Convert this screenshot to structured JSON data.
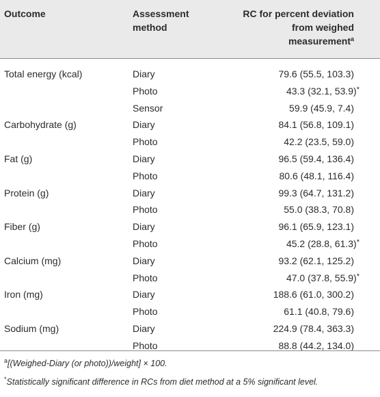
{
  "table": {
    "headers": {
      "outcome": "Outcome",
      "method_line1": "Assessment",
      "method_line2": "method",
      "rc_line1": "RC for percent deviation",
      "rc_line2": "from weighed",
      "rc_line3": "measurement",
      "rc_sup": "a"
    },
    "rows": [
      {
        "outcome": "Total energy (kcal)",
        "method": "Diary",
        "rc": "79.6 (55.5, 103.3)",
        "star": ""
      },
      {
        "outcome": "",
        "method": "Photo",
        "rc": "43.3 (32.1, 53.9)",
        "star": "*"
      },
      {
        "outcome": "",
        "method": "Sensor",
        "rc": "59.9 (45.9, 7.4)",
        "star": ""
      },
      {
        "outcome": "Carbohydrate (g)",
        "method": "Diary",
        "rc": "84.1 (56.8, 109.1)",
        "star": ""
      },
      {
        "outcome": "",
        "method": "Photo",
        "rc": "42.2 (23.5, 59.0)",
        "star": ""
      },
      {
        "outcome": "Fat (g)",
        "method": "Diary",
        "rc": "96.5 (59.4, 136.4)",
        "star": ""
      },
      {
        "outcome": "",
        "method": "Photo",
        "rc": "80.6 (48.1, 116.4)",
        "star": ""
      },
      {
        "outcome": "Protein (g)",
        "method": "Diary",
        "rc": "99.3 (64.7, 131.2)",
        "star": ""
      },
      {
        "outcome": "",
        "method": "Photo",
        "rc": "55.0 (38.3, 70.8)",
        "star": ""
      },
      {
        "outcome": "Fiber (g)",
        "method": "Diary",
        "rc": "96.1 (65.9, 123.1)",
        "star": ""
      },
      {
        "outcome": "",
        "method": "Photo",
        "rc": "45.2 (28.8, 61.3)",
        "star": "*"
      },
      {
        "outcome": "Calcium (mg)",
        "method": "Diary",
        "rc": "93.2 (62.1, 125.2)",
        "star": ""
      },
      {
        "outcome": "",
        "method": "Photo",
        "rc": "47.0 (37.8, 55.9)",
        "star": "*"
      },
      {
        "outcome": "Iron (mg)",
        "method": "Diary",
        "rc": "188.6 (61.0, 300.2)",
        "star": ""
      },
      {
        "outcome": "",
        "method": "Photo",
        "rc": "61.1 (40.8, 79.6)",
        "star": ""
      },
      {
        "outcome": "Sodium (mg)",
        "method": "Diary",
        "rc": "224.9 (78.4, 363.3)",
        "star": ""
      },
      {
        "outcome": "",
        "method": "Photo",
        "rc": "88.8 (44.2, 134.0)",
        "star": ""
      }
    ],
    "footnotes": {
      "a_marker": "a",
      "a_text": "[(Weighed-Diary (or photo))/weight] × 100.",
      "star_marker": "*",
      "star_text": "Statistically significant difference in RCs from diet method at a 5% significant level."
    }
  }
}
